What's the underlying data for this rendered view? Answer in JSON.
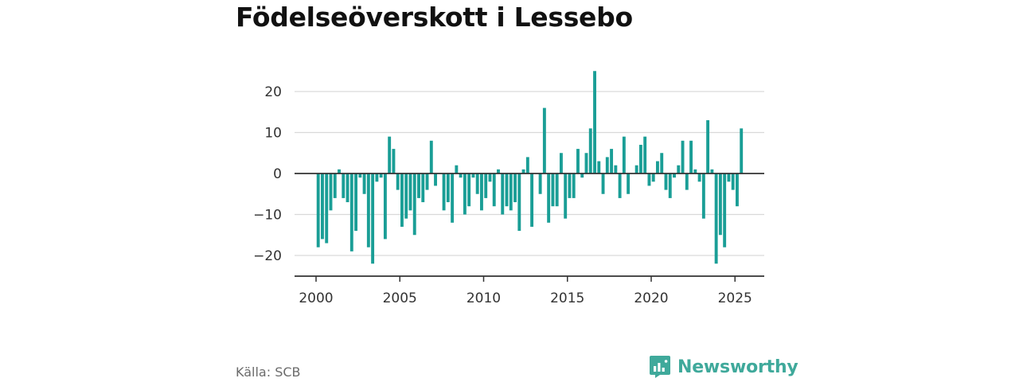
{
  "title": "Födelseöverskott i Lessebo",
  "source": "Källa: SCB",
  "brand": {
    "name": "Newsworthy",
    "color": "#3fa99b"
  },
  "colors": {
    "bar": "#1a9e96",
    "zero_line": "#333333",
    "grid": "#d9d9d9"
  },
  "chart_data": {
    "type": "bar",
    "title": "Födelseöverskott i Lessebo",
    "xlabel": "",
    "ylabel": "",
    "frequency": "monthly",
    "x_start": 2000.0,
    "x_step": 0.25,
    "values": [
      -18,
      -16,
      -17,
      -9,
      -6,
      1,
      -6,
      -7,
      -19,
      -14,
      -1,
      -5,
      -18,
      -22,
      -2,
      -1,
      -16,
      9,
      6,
      -4,
      -13,
      -11,
      -9,
      -15,
      -6,
      -7,
      -4,
      8,
      -3,
      0,
      -9,
      -7,
      -12,
      2,
      -1,
      -10,
      -8,
      -1,
      -5,
      -9,
      -6,
      -2,
      -8,
      1,
      -10,
      -8,
      -9,
      -7,
      -14,
      1,
      4,
      -13,
      0,
      -5,
      16,
      -12,
      -8,
      -8,
      5,
      -11,
      -6,
      -6,
      6,
      -1,
      5,
      11,
      25,
      3,
      -5,
      4,
      6,
      2,
      -6,
      9,
      -5,
      0,
      2,
      7,
      9,
      -3,
      -2,
      3,
      5,
      -4,
      -6,
      -1,
      2,
      8,
      -4,
      8,
      1,
      -2,
      -11,
      13,
      1,
      -22,
      -15,
      -18,
      -2,
      -4,
      -8,
      11
    ],
    "x_ticks": [
      "2000",
      "2005",
      "2010",
      "2015",
      "2020",
      "2025"
    ],
    "x_tick_values": [
      2000,
      2005,
      2010,
      2015,
      2020,
      2025
    ],
    "y_ticks": [
      "20",
      "10",
      "0",
      "−10",
      "−20"
    ],
    "y_tick_values": [
      20,
      10,
      0,
      -10,
      -20
    ],
    "ylim": [
      -25,
      27
    ],
    "xlim": [
      1998.7,
      2026.7
    ],
    "grid": true,
    "legend": "none"
  }
}
